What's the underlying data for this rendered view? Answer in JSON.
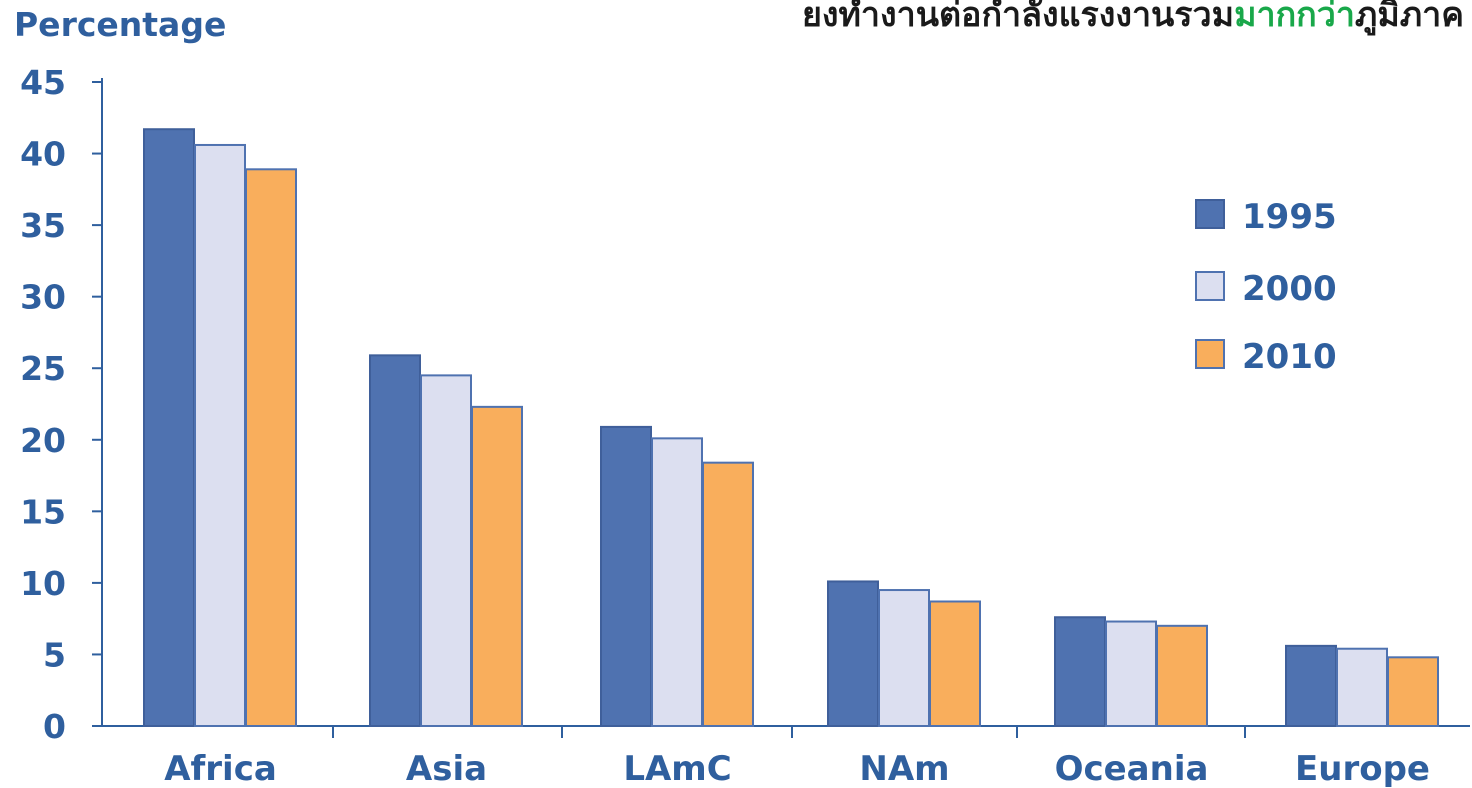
{
  "header": {
    "title_part1": "ยงทำงานต่อกำลังแรงงานรวม",
    "title_highlight": "มากกว่า",
    "title_part2": "ภูมิภาค"
  },
  "colors": {
    "axis": "#2f5f9e",
    "highlight": "#19a84a"
  },
  "chart_data": {
    "type": "bar",
    "ylabel": "Percentage",
    "xlabel": "",
    "ylim": [
      0,
      45
    ],
    "yticks": [
      "0",
      "5",
      "10",
      "15",
      "20",
      "25",
      "30",
      "35",
      "40",
      "45"
    ],
    "categories": [
      "Africa",
      "Asia",
      "LAmC",
      "NAm",
      "Oceania",
      "Europe"
    ],
    "series": [
      {
        "name": "1995",
        "color": "#4f72b0",
        "stroke": "#3f5f9a",
        "values": [
          41.7,
          25.9,
          20.9,
          10.1,
          7.6,
          5.6
        ]
      },
      {
        "name": "2000",
        "color": "#dcdff0",
        "stroke": "#4f72b0",
        "values": [
          40.6,
          24.5,
          20.1,
          9.5,
          7.3,
          5.4
        ]
      },
      {
        "name": "2010",
        "color": "#f9ae5c",
        "stroke": "#4f72b0",
        "values": [
          38.9,
          22.3,
          18.4,
          8.7,
          7.0,
          4.8
        ]
      }
    ],
    "legend_position": "right",
    "grid": false
  }
}
